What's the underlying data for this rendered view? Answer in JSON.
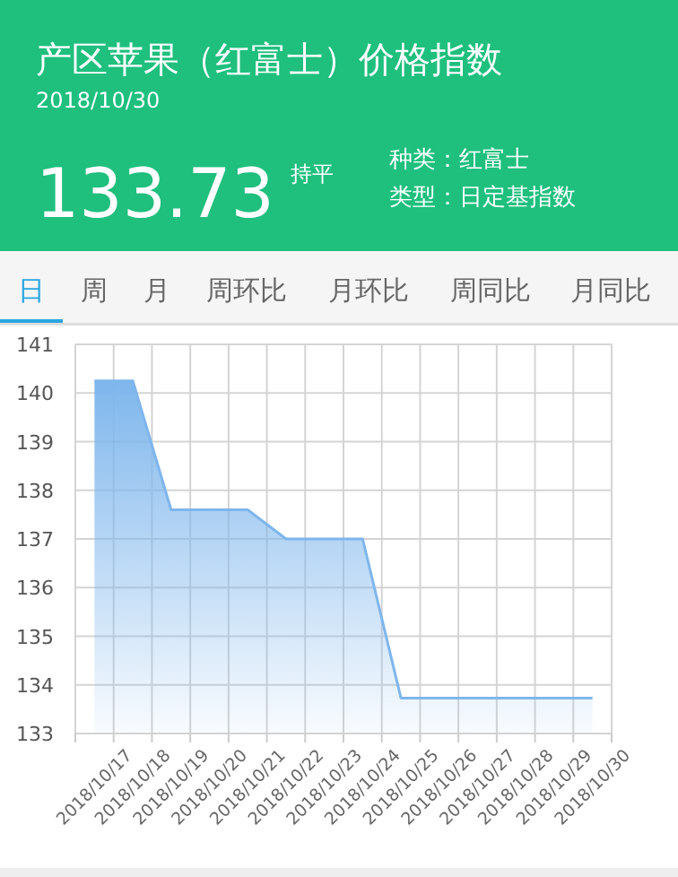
{
  "chart_data": {
    "type": "area",
    "title": "产区苹果（红富士）价格指数",
    "subtitle": "2018/10/30",
    "annotations": [
      "133.73",
      "持平",
      "种类：红富士",
      "类型：日定基指数",
      "日",
      "周",
      "月",
      "周环比",
      "月环比",
      "周同比",
      "月同比"
    ],
    "categories": [
      "2018/10/17",
      "2018/10/18",
      "2018/10/19",
      "2018/10/20",
      "2018/10/21",
      "2018/10/22",
      "2018/10/23",
      "2018/10/24",
      "2018/10/25",
      "2018/10/26",
      "2018/10/27",
      "2018/10/28",
      "2018/10/29",
      "2018/10/30"
    ],
    "series": [
      {
        "color": "#7eb6ec",
        "values": [
          140.25,
          140.25,
          137.6,
          137.6,
          137.6,
          137.0,
          137.0,
          137.0,
          133.73,
          133.73,
          133.73,
          133.73,
          133.73,
          133.73
        ]
      }
    ],
    "ylim": [
      133,
      141
    ],
    "yticks": [
      133,
      134,
      135,
      136,
      137,
      138,
      139,
      140,
      141
    ],
    "grid": true
  }
}
